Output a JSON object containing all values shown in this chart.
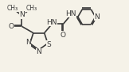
{
  "bg_color": "#f5f2e8",
  "bond_color": "#3a3a3a",
  "atom_color": "#3a3a3a",
  "bond_width": 1.2,
  "font_size": 6.5,
  "figsize": [
    1.62,
    0.91
  ],
  "dpi": 100,
  "xlim": [
    0,
    8.5
  ],
  "ylim": [
    0,
    4.8
  ]
}
